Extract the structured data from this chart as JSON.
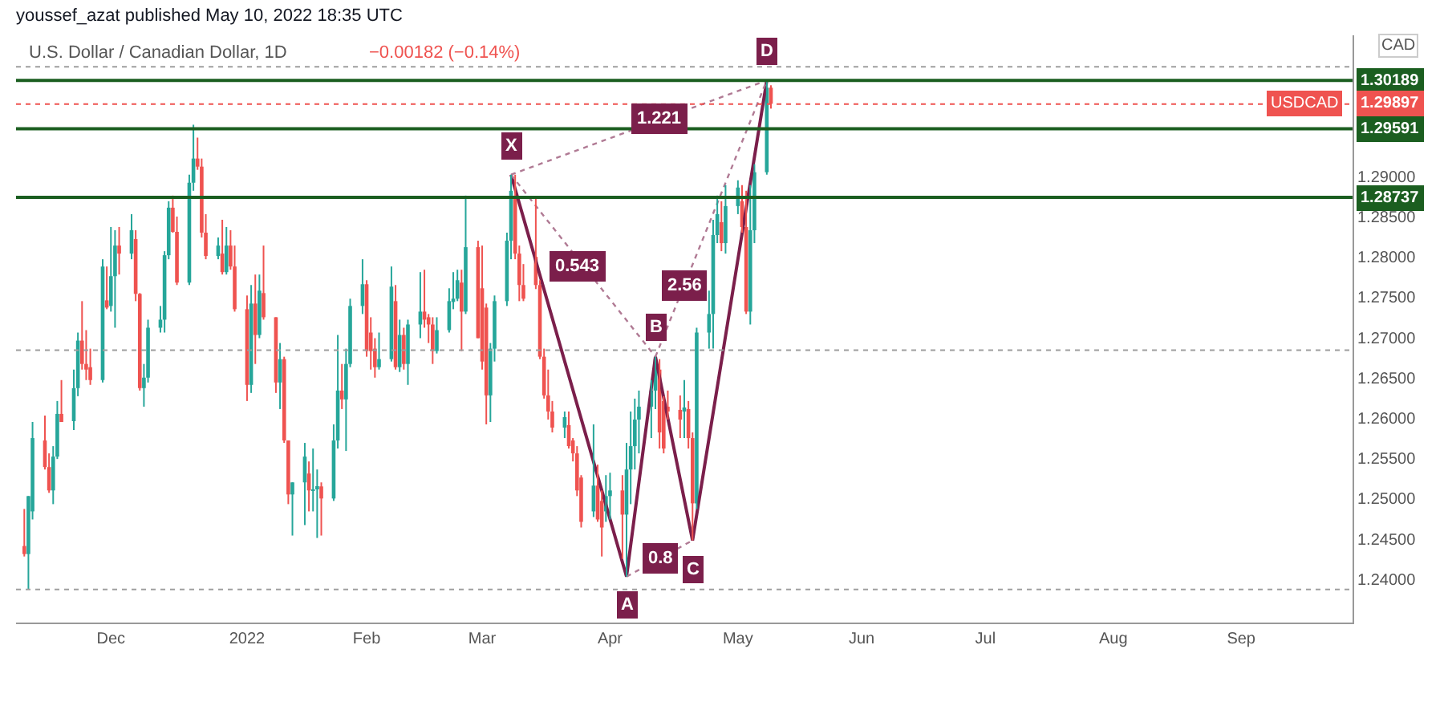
{
  "chart_data": {
    "type": "candlestick",
    "title": "U.S. Dollar / Canadian Dollar, 1D",
    "subtitle": "youssef_azat published May 10, 2022 18:35 UTC",
    "x": [
      "2021-11-10",
      "2021-11-11",
      "2021-11-12",
      "2021-11-15",
      "2021-11-16",
      "2021-11-17",
      "2021-11-18",
      "2021-11-19",
      "2021-11-22",
      "2021-11-23",
      "2021-11-24",
      "2021-11-25",
      "2021-11-26",
      "2021-11-29",
      "2021-11-30",
      "2021-12-01",
      "2021-12-02",
      "2021-12-03",
      "2021-12-06",
      "2021-12-07",
      "2021-12-08",
      "2021-12-09",
      "2021-12-10",
      "2021-12-13",
      "2021-12-14",
      "2021-12-15",
      "2021-12-16",
      "2021-12-17",
      "2021-12-20",
      "2021-12-21",
      "2021-12-22",
      "2021-12-23",
      "2021-12-24",
      "2021-12-27",
      "2021-12-28",
      "2021-12-29",
      "2021-12-30",
      "2021-12-31",
      "2022-01-03",
      "2022-01-04",
      "2022-01-05",
      "2022-01-06",
      "2022-01-07",
      "2022-01-10",
      "2022-01-11",
      "2022-01-12",
      "2022-01-13",
      "2022-01-14",
      "2022-01-17",
      "2022-01-18",
      "2022-01-19",
      "2022-01-20",
      "2022-01-21",
      "2022-01-24",
      "2022-01-25",
      "2022-01-26",
      "2022-01-27",
      "2022-01-28",
      "2022-01-31",
      "2022-02-01",
      "2022-02-02",
      "2022-02-03",
      "2022-02-04",
      "2022-02-07",
      "2022-02-08",
      "2022-02-09",
      "2022-02-10",
      "2022-02-11",
      "2022-02-14",
      "2022-02-15",
      "2022-02-16",
      "2022-02-17",
      "2022-02-18",
      "2022-02-21",
      "2022-02-22",
      "2022-02-23",
      "2022-02-24",
      "2022-02-25",
      "2022-02-28",
      "2022-03-01",
      "2022-03-02",
      "2022-03-03",
      "2022-03-04",
      "2022-03-07",
      "2022-03-08",
      "2022-03-09",
      "2022-03-10",
      "2022-03-11",
      "2022-03-14",
      "2022-03-15",
      "2022-03-16",
      "2022-03-17",
      "2022-03-18",
      "2022-03-21",
      "2022-03-22",
      "2022-03-23",
      "2022-03-24",
      "2022-03-25",
      "2022-03-28",
      "2022-03-29",
      "2022-03-30",
      "2022-03-31",
      "2022-04-01",
      "2022-04-04",
      "2022-04-05",
      "2022-04-06",
      "2022-04-07",
      "2022-04-08",
      "2022-04-11",
      "2022-04-12",
      "2022-04-13",
      "2022-04-14",
      "2022-04-15",
      "2022-04-18",
      "2022-04-19",
      "2022-04-20",
      "2022-04-21",
      "2022-04-22",
      "2022-04-25",
      "2022-04-26",
      "2022-04-27",
      "2022-04-28",
      "2022-04-29",
      "2022-05-02",
      "2022-05-03",
      "2022-05-04",
      "2022-05-05",
      "2022-05-06",
      "2022-05-09",
      "2022-05-10"
    ],
    "ohlc": [
      [
        1.2441,
        1.2487,
        1.2428,
        1.2431
      ],
      [
        1.2431,
        1.2503,
        1.2387,
        1.2503
      ],
      [
        1.2484,
        1.2595,
        1.2474,
        1.2575
      ],
      [
        1.2572,
        1.2603,
        1.2536,
        1.2539
      ],
      [
        1.2539,
        1.2556,
        1.2507,
        1.251
      ],
      [
        1.251,
        1.2565,
        1.2493,
        1.2552
      ],
      [
        1.2552,
        1.2621,
        1.2549,
        1.2605
      ],
      [
        1.2605,
        1.2647,
        1.2595,
        1.2595
      ],
      [
        1.2596,
        1.266,
        1.2585,
        1.2637
      ],
      [
        1.2637,
        1.2706,
        1.2627,
        1.2696
      ],
      [
        1.2696,
        1.2745,
        1.266,
        1.2667
      ],
      [
        1.2667,
        1.2709,
        1.2647,
        1.266
      ],
      [
        1.2663,
        1.2686,
        1.2641,
        1.2647
      ],
      [
        1.2647,
        1.2797,
        1.2644,
        1.2788
      ],
      [
        1.2746,
        1.2788,
        1.2735,
        1.2737
      ],
      [
        1.2739,
        1.2837,
        1.2732,
        1.2776
      ],
      [
        1.2776,
        1.2833,
        1.2712,
        1.2814
      ],
      [
        1.2814,
        1.2837,
        1.2778,
        1.2804
      ],
      [
        1.2804,
        1.2853,
        1.2797,
        1.2833
      ],
      [
        1.2822,
        1.2833,
        1.2745,
        1.2754
      ],
      [
        1.2754,
        1.2755,
        1.2634,
        1.2637
      ],
      [
        1.2637,
        1.2667,
        1.2614,
        1.265
      ],
      [
        1.265,
        1.2722,
        1.2644,
        1.2712
      ],
      [
        1.2712,
        1.2739,
        1.2706,
        1.2722
      ],
      [
        1.2722,
        1.2807,
        1.2706,
        1.2802
      ],
      [
        1.2802,
        1.2869,
        1.2797,
        1.2861
      ],
      [
        1.2861,
        1.2876,
        1.283,
        1.2831
      ],
      [
        1.2831,
        1.285,
        1.2765,
        1.2768
      ],
      [
        1.2768,
        1.2902,
        1.2765,
        1.2892
      ],
      [
        1.2892,
        1.2964,
        1.2882,
        1.2922
      ],
      [
        1.2922,
        1.2948,
        1.2908,
        1.2912
      ],
      [
        1.2912,
        1.2922,
        1.2824,
        1.283
      ],
      [
        1.283,
        1.2853,
        1.2797,
        1.2801
      ],
      [
        1.2801,
        1.2824,
        1.2797,
        1.2814
      ],
      [
        1.2804,
        1.2846,
        1.2778,
        1.2781
      ],
      [
        1.2781,
        1.2837,
        1.2778,
        1.2814
      ],
      [
        1.2814,
        1.2833,
        1.2784,
        1.2788
      ],
      [
        1.2788,
        1.2814,
        1.2732,
        1.2735
      ],
      [
        1.2735,
        1.2752,
        1.2621,
        1.2641
      ],
      [
        1.2641,
        1.2765,
        1.2631,
        1.2742
      ],
      [
        1.2742,
        1.2778,
        1.2667,
        1.2703
      ],
      [
        1.2703,
        1.2778,
        1.2699,
        1.2758
      ],
      [
        1.2755,
        1.2814,
        1.2722,
        1.2725
      ],
      [
        1.2725,
        1.2725,
        1.2631,
        1.2644
      ],
      [
        1.2644,
        1.2693,
        1.2611,
        1.2673
      ],
      [
        1.2673,
        1.2676,
        1.2569,
        1.2572
      ],
      [
        1.2572,
        1.2572,
        1.2493,
        1.2505
      ],
      [
        1.2505,
        1.252,
        1.2454,
        1.252
      ],
      [
        1.252,
        1.2569,
        1.2467,
        1.2552
      ],
      [
        1.2531,
        1.2546,
        1.2484,
        1.251
      ],
      [
        1.251,
        1.2562,
        1.2484,
        1.2511
      ],
      [
        1.2512,
        1.2536,
        1.2451,
        1.2515
      ],
      [
        1.2515,
        1.252,
        1.2454,
        1.25
      ],
      [
        1.25,
        1.2592,
        1.2497,
        1.2572
      ],
      [
        1.2572,
        1.2703,
        1.2562,
        1.2634
      ],
      [
        1.2634,
        1.2667,
        1.2611,
        1.2623
      ],
      [
        1.2623,
        1.2686,
        1.2559,
        1.2667
      ],
      [
        1.2667,
        1.2748,
        1.2663,
        1.2739
      ],
      [
        1.2739,
        1.2797,
        1.2729,
        1.2766
      ],
      [
        1.2766,
        1.2771,
        1.2676,
        1.2683
      ],
      [
        1.2706,
        1.2725,
        1.266,
        1.2683
      ],
      [
        1.2686,
        1.2699,
        1.265,
        1.2663
      ],
      [
        1.2663,
        1.2706,
        1.266,
        1.2673
      ],
      [
        1.2673,
        1.2788,
        1.267,
        1.2763
      ],
      [
        1.2745,
        1.2765,
        1.266,
        1.2663
      ],
      [
        1.2663,
        1.2722,
        1.2657,
        1.2703
      ],
      [
        1.2703,
        1.2712,
        1.266,
        1.2667
      ],
      [
        1.2667,
        1.2722,
        1.2641,
        1.2716
      ],
      [
        1.2716,
        1.2781,
        1.2699,
        1.2732
      ],
      [
        1.2732,
        1.2784,
        1.2712,
        1.2722
      ],
      [
        1.2725,
        1.2729,
        1.2693,
        1.2716
      ],
      [
        1.2716,
        1.2725,
        1.2667,
        1.2683
      ],
      [
        1.2683,
        1.2725,
        1.268,
        1.2709
      ],
      [
        1.2709,
        1.2761,
        1.2706,
        1.2745
      ],
      [
        1.2744,
        1.2781,
        1.2735,
        1.2748
      ],
      [
        1.2748,
        1.2784,
        1.2745,
        1.2771
      ],
      [
        1.2768,
        1.2784,
        1.2683,
        1.2732
      ],
      [
        1.2732,
        1.2876,
        1.2729,
        1.2812
      ],
      [
        1.2812,
        1.282,
        1.2699,
        1.2699
      ],
      [
        1.2761,
        1.2814,
        1.266,
        1.267
      ],
      [
        1.2737,
        1.2742,
        1.2592,
        1.2628
      ],
      [
        1.2628,
        1.2693,
        1.2595,
        1.2686
      ],
      [
        1.2686,
        1.2752,
        1.267,
        1.2745
      ],
      [
        1.2745,
        1.283,
        1.2739,
        1.282
      ],
      [
        1.282,
        1.2902,
        1.2797,
        1.2882
      ],
      [
        1.2876,
        1.2902,
        1.2797,
        1.2804
      ],
      [
        1.2804,
        1.2814,
        1.2745,
        1.2765
      ],
      [
        1.2765,
        1.2791,
        1.2745,
        1.2748
      ],
      [
        1.28,
        1.2873,
        1.276,
        1.2765
      ],
      [
        1.2765,
        1.2771,
        1.2673,
        1.2676
      ],
      [
        1.2676,
        1.2686,
        1.2624,
        1.2628
      ],
      [
        1.2628,
        1.266,
        1.2598,
        1.2608
      ],
      [
        1.2608,
        1.2621,
        1.2582,
        1.2588
      ],
      [
        1.2588,
        1.2608,
        1.2575,
        1.2601
      ],
      [
        1.2591,
        1.2608,
        1.2562,
        1.2565
      ],
      [
        1.2572,
        1.2575,
        1.2546,
        1.2556
      ],
      [
        1.2556,
        1.2565,
        1.2503,
        1.251
      ],
      [
        1.2526,
        1.2529,
        1.2464,
        1.2471
      ],
      [
        1.2484,
        1.2592,
        1.2477,
        1.2516
      ],
      [
        1.2516,
        1.2542,
        1.2471,
        1.2474
      ],
      [
        1.2497,
        1.251,
        1.2428,
        1.2464
      ],
      [
        1.2484,
        1.2529,
        1.2471,
        1.2503
      ],
      [
        1.2503,
        1.2532,
        1.2474,
        1.251
      ],
      [
        1.251,
        1.2529,
        1.2425,
        1.248
      ],
      [
        1.248,
        1.2569,
        1.2403,
        1.2536
      ],
      [
        1.2536,
        1.2608,
        1.2493,
        1.2565
      ],
      [
        1.2565,
        1.2624,
        1.2536,
        1.2598
      ],
      [
        1.2598,
        1.2634,
        1.2556,
        1.2614
      ],
      [
        1.2614,
        1.2647,
        1.2575,
        1.2634
      ],
      [
        1.2634,
        1.2676,
        1.2611,
        1.2673
      ],
      [
        1.266,
        1.2673,
        1.2562,
        1.2582
      ],
      [
        1.2621,
        1.2627,
        1.2556,
        1.2562
      ],
      [
        1.2614,
        1.2634,
        1.2598,
        1.2608
      ],
      [
        1.261,
        1.2628,
        1.2575,
        1.2598
      ],
      [
        1.2608,
        1.2647,
        1.2575,
        1.2613
      ],
      [
        1.2611,
        1.2621,
        1.2562,
        1.2575
      ],
      [
        1.2575,
        1.2582,
        1.2448,
        1.2494
      ],
      [
        1.2494,
        1.2712,
        1.2487,
        1.2706
      ],
      [
        1.2706,
        1.2758,
        1.2686,
        1.2729
      ],
      [
        1.2729,
        1.2846,
        1.2686,
        1.2827
      ],
      [
        1.2827,
        1.2876,
        1.2817,
        1.2853
      ],
      [
        1.2843,
        1.2869,
        1.2807,
        1.2817
      ],
      [
        1.2817,
        1.2889,
        1.2804,
        1.2863
      ],
      [
        1.2863,
        1.2895,
        1.2853,
        1.2886
      ],
      [
        1.2869,
        1.2889,
        1.283,
        1.2837
      ],
      [
        1.2837,
        1.2882,
        1.2729,
        1.2732
      ],
      [
        1.2732,
        1.2889,
        1.2716,
        1.2833
      ],
      [
        1.2833,
        1.2915,
        1.2817,
        1.2905
      ],
      [
        1.2905,
        1.3019,
        1.2902,
        1.301
      ],
      [
        1.301,
        1.3013,
        1.2984,
        1.299
      ]
    ],
    "series": [
      {
        "type": "line",
        "color": "#7b1f4b",
        "line_style": "solid",
        "x": [
          "2022-03-08",
          "2022-04-05",
          "2022-04-12",
          "2022-04-21",
          "2022-05-09"
        ],
        "values": [
          1.2902,
          1.2403,
          1.2676,
          1.2448,
          1.3019
        ]
      },
      {
        "type": "line",
        "color": "#b07a94",
        "line_style": "dotted",
        "x": [
          "2022-03-08",
          "2022-04-12"
        ],
        "values": [
          1.2902,
          1.2676
        ]
      },
      {
        "type": "line",
        "color": "#b07a94",
        "line_style": "dotted",
        "x": [
          "2022-04-05",
          "2022-04-21"
        ],
        "values": [
          1.2403,
          1.2448
        ]
      },
      {
        "type": "line",
        "color": "#b07a94",
        "line_style": "dotted",
        "x": [
          "2022-04-12",
          "2022-05-09"
        ],
        "values": [
          1.2676,
          1.3019
        ]
      },
      {
        "type": "line",
        "color": "#b07a94",
        "line_style": "dotted",
        "x": [
          "2022-03-08",
          "2022-05-09"
        ],
        "values": [
          1.2902,
          1.3019
        ]
      }
    ],
    "xlim": [
      "2021-11-08",
      "2022-09-28"
    ],
    "xticks": [
      {
        "value": "2021-12-01",
        "label": "Dec"
      },
      {
        "value": "2022-01-03",
        "label": "2022"
      },
      {
        "value": "2022-02-01",
        "label": "Feb"
      },
      {
        "value": "2022-03-01",
        "label": "Mar"
      },
      {
        "value": "2022-04-01",
        "label": "Apr"
      },
      {
        "value": "2022-05-02",
        "label": "May"
      },
      {
        "value": "2022-06-01",
        "label": "Jun"
      },
      {
        "value": "2022-07-01",
        "label": "Jul"
      },
      {
        "value": "2022-08-01",
        "label": "Aug"
      },
      {
        "value": "2022-09-01",
        "label": "Sep"
      }
    ],
    "ylim": [
      1.2346,
      1.3075
    ],
    "yticks": [
      {
        "value": 1.24,
        "label": "1.24000"
      },
      {
        "value": 1.245,
        "label": "1.24500"
      },
      {
        "value": 1.25,
        "label": "1.25000"
      },
      {
        "value": 1.255,
        "label": "1.25500"
      },
      {
        "value": 1.26,
        "label": "1.26000"
      },
      {
        "value": 1.265,
        "label": "1.26500"
      },
      {
        "value": 1.27,
        "label": "1.27000"
      },
      {
        "value": 1.275,
        "label": "1.27500"
      },
      {
        "value": 1.28,
        "label": "1.28000"
      },
      {
        "value": 1.285,
        "label": "1.28500"
      },
      {
        "value": 1.29,
        "label": "1.29000"
      }
    ],
    "ref_lines": [
      {
        "axis": "y",
        "value": 1.30189,
        "label": "1.30189",
        "color": "#1b5e20",
        "line_style": "solid"
      },
      {
        "axis": "y",
        "value": 1.29591,
        "label": "1.29591",
        "color": "#1b5e20",
        "line_style": "solid"
      },
      {
        "axis": "y",
        "value": 1.28737,
        "label": "1.28737",
        "color": "#1b5e20",
        "line_style": "solid"
      },
      {
        "axis": "y",
        "value": 1.29897,
        "label": "USDCAD",
        "color": "#ef5350",
        "line_style": "dotted"
      },
      {
        "axis": "y",
        "value": 1.3036,
        "color": "#9e9e9e",
        "line_style": "dotted"
      },
      {
        "axis": "y",
        "value": 1.2684,
        "color": "#9e9e9e",
        "line_style": "dotted"
      },
      {
        "axis": "y",
        "value": 1.2387,
        "color": "#9e9e9e",
        "line_style": "dotted"
      }
    ],
    "annotations": [
      "−0.00182 (−0.14%)",
      "CAD",
      {
        "text": "1.29897",
        "y": 1.29897
      },
      {
        "text": "X",
        "x": "2022-03-08",
        "y": 1.2902
      },
      {
        "text": "A",
        "x": "2022-04-05",
        "y": 1.2403
      },
      {
        "text": "B",
        "x": "2022-04-12",
        "y": 1.2676
      },
      {
        "text": "C",
        "x": "2022-04-21",
        "y": 1.2448
      },
      {
        "text": "D",
        "x": "2022-05-09",
        "y": 1.3019
      },
      {
        "text": "0.543",
        "x": "2022-03-24",
        "y": 1.2789
      },
      {
        "text": "1.221",
        "x": "2022-04-13",
        "y": 1.2971
      },
      {
        "text": "0.8",
        "x": "2022-04-13",
        "y": 1.2426
      },
      {
        "text": "2.56",
        "x": "2022-04-19",
        "y": 1.2765
      }
    ]
  }
}
